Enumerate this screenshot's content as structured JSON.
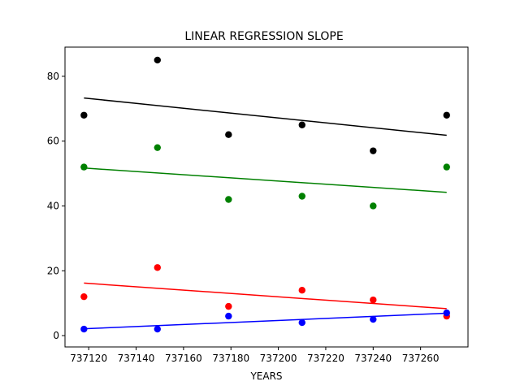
{
  "chart_data": {
    "type": "scatter",
    "title": "LINEAR REGRESSION SLOPE",
    "xlabel": "YEARS",
    "ylabel": "",
    "xlim": [
      737110,
      737280
    ],
    "ylim": [
      -3.5,
      89
    ],
    "xticks": [
      737120,
      737140,
      737160,
      737180,
      737200,
      737220,
      737240,
      737260
    ],
    "yticks": [
      0,
      20,
      40,
      60,
      80
    ],
    "grid": false,
    "x": [
      737118,
      737149,
      737179,
      737210,
      737240,
      737271
    ],
    "series": [
      {
        "color": "#000000",
        "values": [
          68,
          85,
          62,
          65,
          57,
          68
        ],
        "fit": [
          73.3,
          61.8
        ]
      },
      {
        "color": "#008000",
        "values": [
          52,
          58,
          42,
          43,
          40,
          52
        ],
        "fit": [
          51.7,
          44.2
        ]
      },
      {
        "color": "#ff0000",
        "values": [
          12,
          21,
          9,
          14,
          11,
          6
        ],
        "fit": [
          16.2,
          8.3
        ]
      },
      {
        "color": "#0000ff",
        "values": [
          2,
          2,
          6,
          4,
          5,
          7
        ],
        "fit": [
          2.1,
          6.9
        ]
      }
    ]
  }
}
